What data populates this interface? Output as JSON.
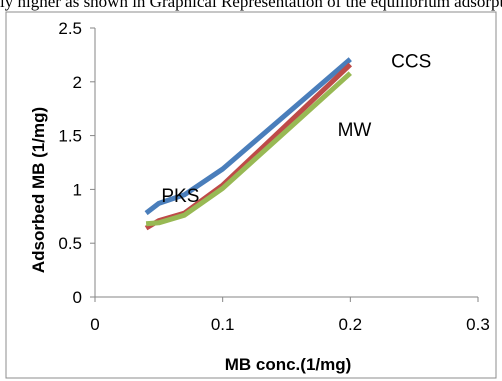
{
  "caption_fragment": "ly higher as shown in Graphical Representation of the equilibrium adsorption.",
  "chart_data": {
    "type": "line",
    "title": "",
    "xlabel": "MB conc.(1/mg)",
    "ylabel": "Adsorbed MB (1/mg)",
    "xlim": [
      0,
      0.3
    ],
    "ylim": [
      0,
      2.5
    ],
    "xticks": [
      0,
      0.1,
      0.2,
      0.3
    ],
    "yticks": [
      0,
      0.5,
      1,
      1.5,
      2,
      2.5
    ],
    "xtick_labels": [
      "0",
      "0.1",
      "0.2",
      "0.3"
    ],
    "ytick_labels": [
      "0",
      "0.5",
      "1",
      "1.5",
      "2",
      "2.5"
    ],
    "grid": false,
    "legend": "none",
    "series": [
      {
        "name": "CCS",
        "color": "#4a7ebb",
        "x": [
          0.04,
          0.05,
          0.07,
          0.1,
          0.2
        ],
        "y": [
          0.78,
          0.87,
          0.95,
          1.19,
          2.21
        ]
      },
      {
        "name": "MW",
        "color": "#be4b48",
        "x": [
          0.04,
          0.05,
          0.07,
          0.1,
          0.2
        ],
        "y": [
          0.64,
          0.71,
          0.78,
          1.04,
          2.16
        ]
      },
      {
        "name": "PKS",
        "color": "#98b954",
        "x": [
          0.04,
          0.05,
          0.07,
          0.1,
          0.2
        ],
        "y": [
          0.68,
          0.69,
          0.76,
          1.01,
          2.08
        ]
      }
    ],
    "annotations": [
      {
        "text": "CCS",
        "x": 0.232,
        "y": 2.2
      },
      {
        "text": "MW",
        "x": 0.19,
        "y": 1.56
      },
      {
        "text": "PKS",
        "x": 0.052,
        "y": 0.95
      }
    ]
  }
}
